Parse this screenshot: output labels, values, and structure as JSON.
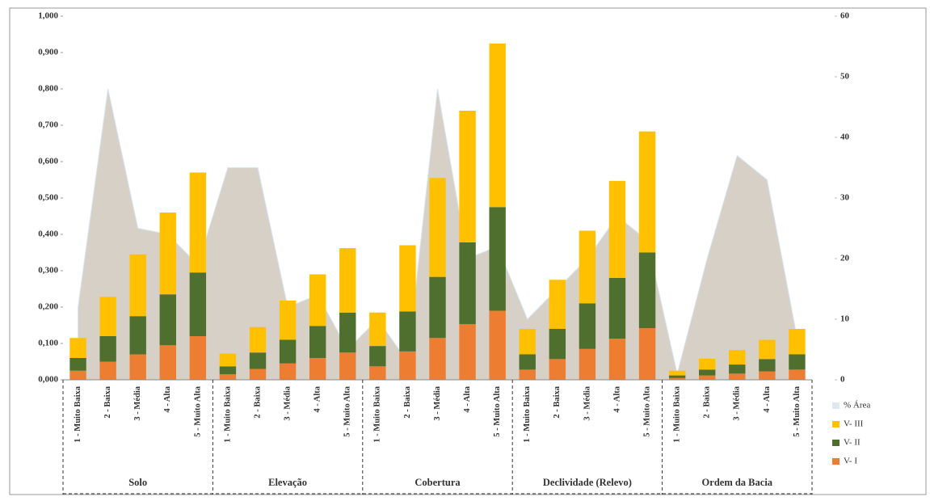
{
  "chart_data": {
    "type": "bar",
    "stacked": true,
    "categories": [
      "1 - Muito Baixa",
      "2 - Baixa",
      "3 - Média",
      "4 - Alta",
      "5 - Muito Alta",
      "1 - Muito Baixa",
      "2 - Baixa",
      "3 - Média",
      "4 - Alta",
      "5 - Muito Alta",
      "1 - Muito Baixa",
      "2 - Baixa",
      "3 - Média",
      "4 - Alta",
      "5 - Muito Alta",
      "1 - Muito Baixa",
      "2 - Baixa",
      "3 - Média",
      "4 - Alta",
      "5 - Muito Alta",
      "1 - Muito Baixa",
      "2 - Baixa",
      "3 - Média",
      "4 - Alta",
      "5 - Muito Alta"
    ],
    "groups": [
      "Solo",
      "Elevação",
      "Cobertura",
      "Declividade (Relevo)",
      "Ordem da Bacia"
    ],
    "series": [
      {
        "name": "% Área",
        "type": "area",
        "axis": "y2",
        "color": "#c8c0b4",
        "values": [
          12,
          48,
          25,
          24,
          19,
          35,
          35,
          12,
          14,
          5,
          10,
          3,
          48,
          20,
          22,
          10,
          15,
          20,
          27,
          23,
          1,
          20,
          37,
          33,
          7
        ]
      },
      {
        "name": "V- I",
        "color": "#ed7d31",
        "values": [
          0.025,
          0.05,
          0.07,
          0.095,
          0.12,
          0.015,
          0.03,
          0.045,
          0.06,
          0.075,
          0.037,
          0.078,
          0.115,
          0.153,
          0.19,
          0.028,
          0.057,
          0.085,
          0.113,
          0.142,
          0.005,
          0.012,
          0.017,
          0.023,
          0.028
        ]
      },
      {
        "name": "V- II",
        "color": "#4f6f2f",
        "values": [
          0.035,
          0.07,
          0.105,
          0.14,
          0.175,
          0.022,
          0.045,
          0.065,
          0.088,
          0.11,
          0.056,
          0.11,
          0.168,
          0.225,
          0.285,
          0.042,
          0.083,
          0.125,
          0.167,
          0.208,
          0.007,
          0.016,
          0.025,
          0.034,
          0.042
        ]
      },
      {
        "name": "V- III",
        "color": "#ffc000",
        "values": [
          0.055,
          0.108,
          0.17,
          0.225,
          0.275,
          0.035,
          0.07,
          0.108,
          0.142,
          0.177,
          0.092,
          0.182,
          0.272,
          0.362,
          0.45,
          0.07,
          0.135,
          0.2,
          0.267,
          0.333,
          0.013,
          0.03,
          0.04,
          0.053,
          0.07
        ]
      }
    ],
    "ylim": [
      0,
      1
    ],
    "yticks": [
      {
        "value": 0,
        "label": "0,000"
      },
      {
        "value": 0.1,
        "label": "0,100"
      },
      {
        "value": 0.2,
        "label": "0,200"
      },
      {
        "value": 0.3,
        "label": "0,300"
      },
      {
        "value": 0.4,
        "label": "0,400"
      },
      {
        "value": 0.5,
        "label": "0,500"
      },
      {
        "value": 0.6,
        "label": "0,600"
      },
      {
        "value": 0.7,
        "label": "0,700"
      },
      {
        "value": 0.8,
        "label": "0,800"
      },
      {
        "value": 0.9,
        "label": "0,900"
      },
      {
        "value": 1,
        "label": "1,000"
      }
    ],
    "y2lim": [
      0,
      60
    ],
    "y2ticks": [
      0,
      10,
      20,
      30,
      40,
      50,
      60
    ],
    "legend": "right"
  }
}
